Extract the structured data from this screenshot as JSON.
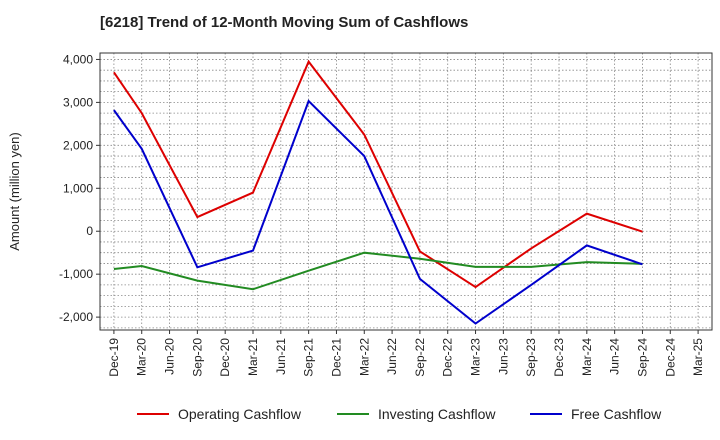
{
  "chart_data": {
    "type": "line",
    "title": "[6218]  Trend of 12-Month Moving Sum of Cashflows",
    "xlabel": "",
    "ylabel": "Amount (million yen)",
    "categories": [
      "Dec-19",
      "Mar-20",
      "Jun-20",
      "Sep-20",
      "Dec-20",
      "Mar-21",
      "Jun-21",
      "Sep-21",
      "Dec-21",
      "Mar-22",
      "Jun-22",
      "Sep-22",
      "Dec-22",
      "Mar-23",
      "Jun-23",
      "Sep-23",
      "Dec-23",
      "Mar-24",
      "Jun-24",
      "Sep-24",
      "Dec-24",
      "Mar-25"
    ],
    "ylim": [
      -2300,
      4150
    ],
    "yticks": [
      -2000,
      -1000,
      0,
      1000,
      2000,
      3000,
      4000
    ],
    "ytick_labels": [
      "-2,000",
      "-1,000",
      "0",
      "1,000",
      "2,000",
      "3,000",
      "4,000"
    ],
    "grid": true,
    "legend_position": "bottom",
    "series": [
      {
        "name": "Operating Cashflow",
        "color": "#dd0000",
        "points": [
          [
            "Dec-19",
            3700
          ],
          [
            "Mar-20",
            2750
          ],
          [
            "Sep-20",
            330
          ],
          [
            "Mar-21",
            900
          ],
          [
            "Sep-21",
            3950
          ],
          [
            "Mar-22",
            2250
          ],
          [
            "Sep-22",
            -470
          ],
          [
            "Mar-23",
            -1300
          ],
          [
            "Sep-23",
            -400
          ],
          [
            "Mar-24",
            410
          ],
          [
            "Sep-24",
            -10
          ]
        ]
      },
      {
        "name": "Investing Cashflow",
        "color": "#228b22",
        "points": [
          [
            "Dec-19",
            -880
          ],
          [
            "Mar-20",
            -810
          ],
          [
            "Sep-20",
            -1150
          ],
          [
            "Mar-21",
            -1350
          ],
          [
            "Sep-21",
            -920
          ],
          [
            "Mar-22",
            -500
          ],
          [
            "Sep-22",
            -640
          ],
          [
            "Mar-23",
            -830
          ],
          [
            "Sep-23",
            -830
          ],
          [
            "Mar-24",
            -720
          ],
          [
            "Sep-24",
            -760
          ]
        ]
      },
      {
        "name": "Free Cashflow",
        "color": "#0000cc",
        "points": [
          [
            "Dec-19",
            2820
          ],
          [
            "Mar-20",
            1920
          ],
          [
            "Sep-20",
            -840
          ],
          [
            "Mar-21",
            -450
          ],
          [
            "Sep-21",
            3030
          ],
          [
            "Mar-22",
            1750
          ],
          [
            "Sep-22",
            -1110
          ],
          [
            "Mar-23",
            -2150
          ],
          [
            "Sep-23",
            -1250
          ],
          [
            "Mar-24",
            -330
          ],
          [
            "Sep-24",
            -770
          ]
        ]
      }
    ]
  }
}
